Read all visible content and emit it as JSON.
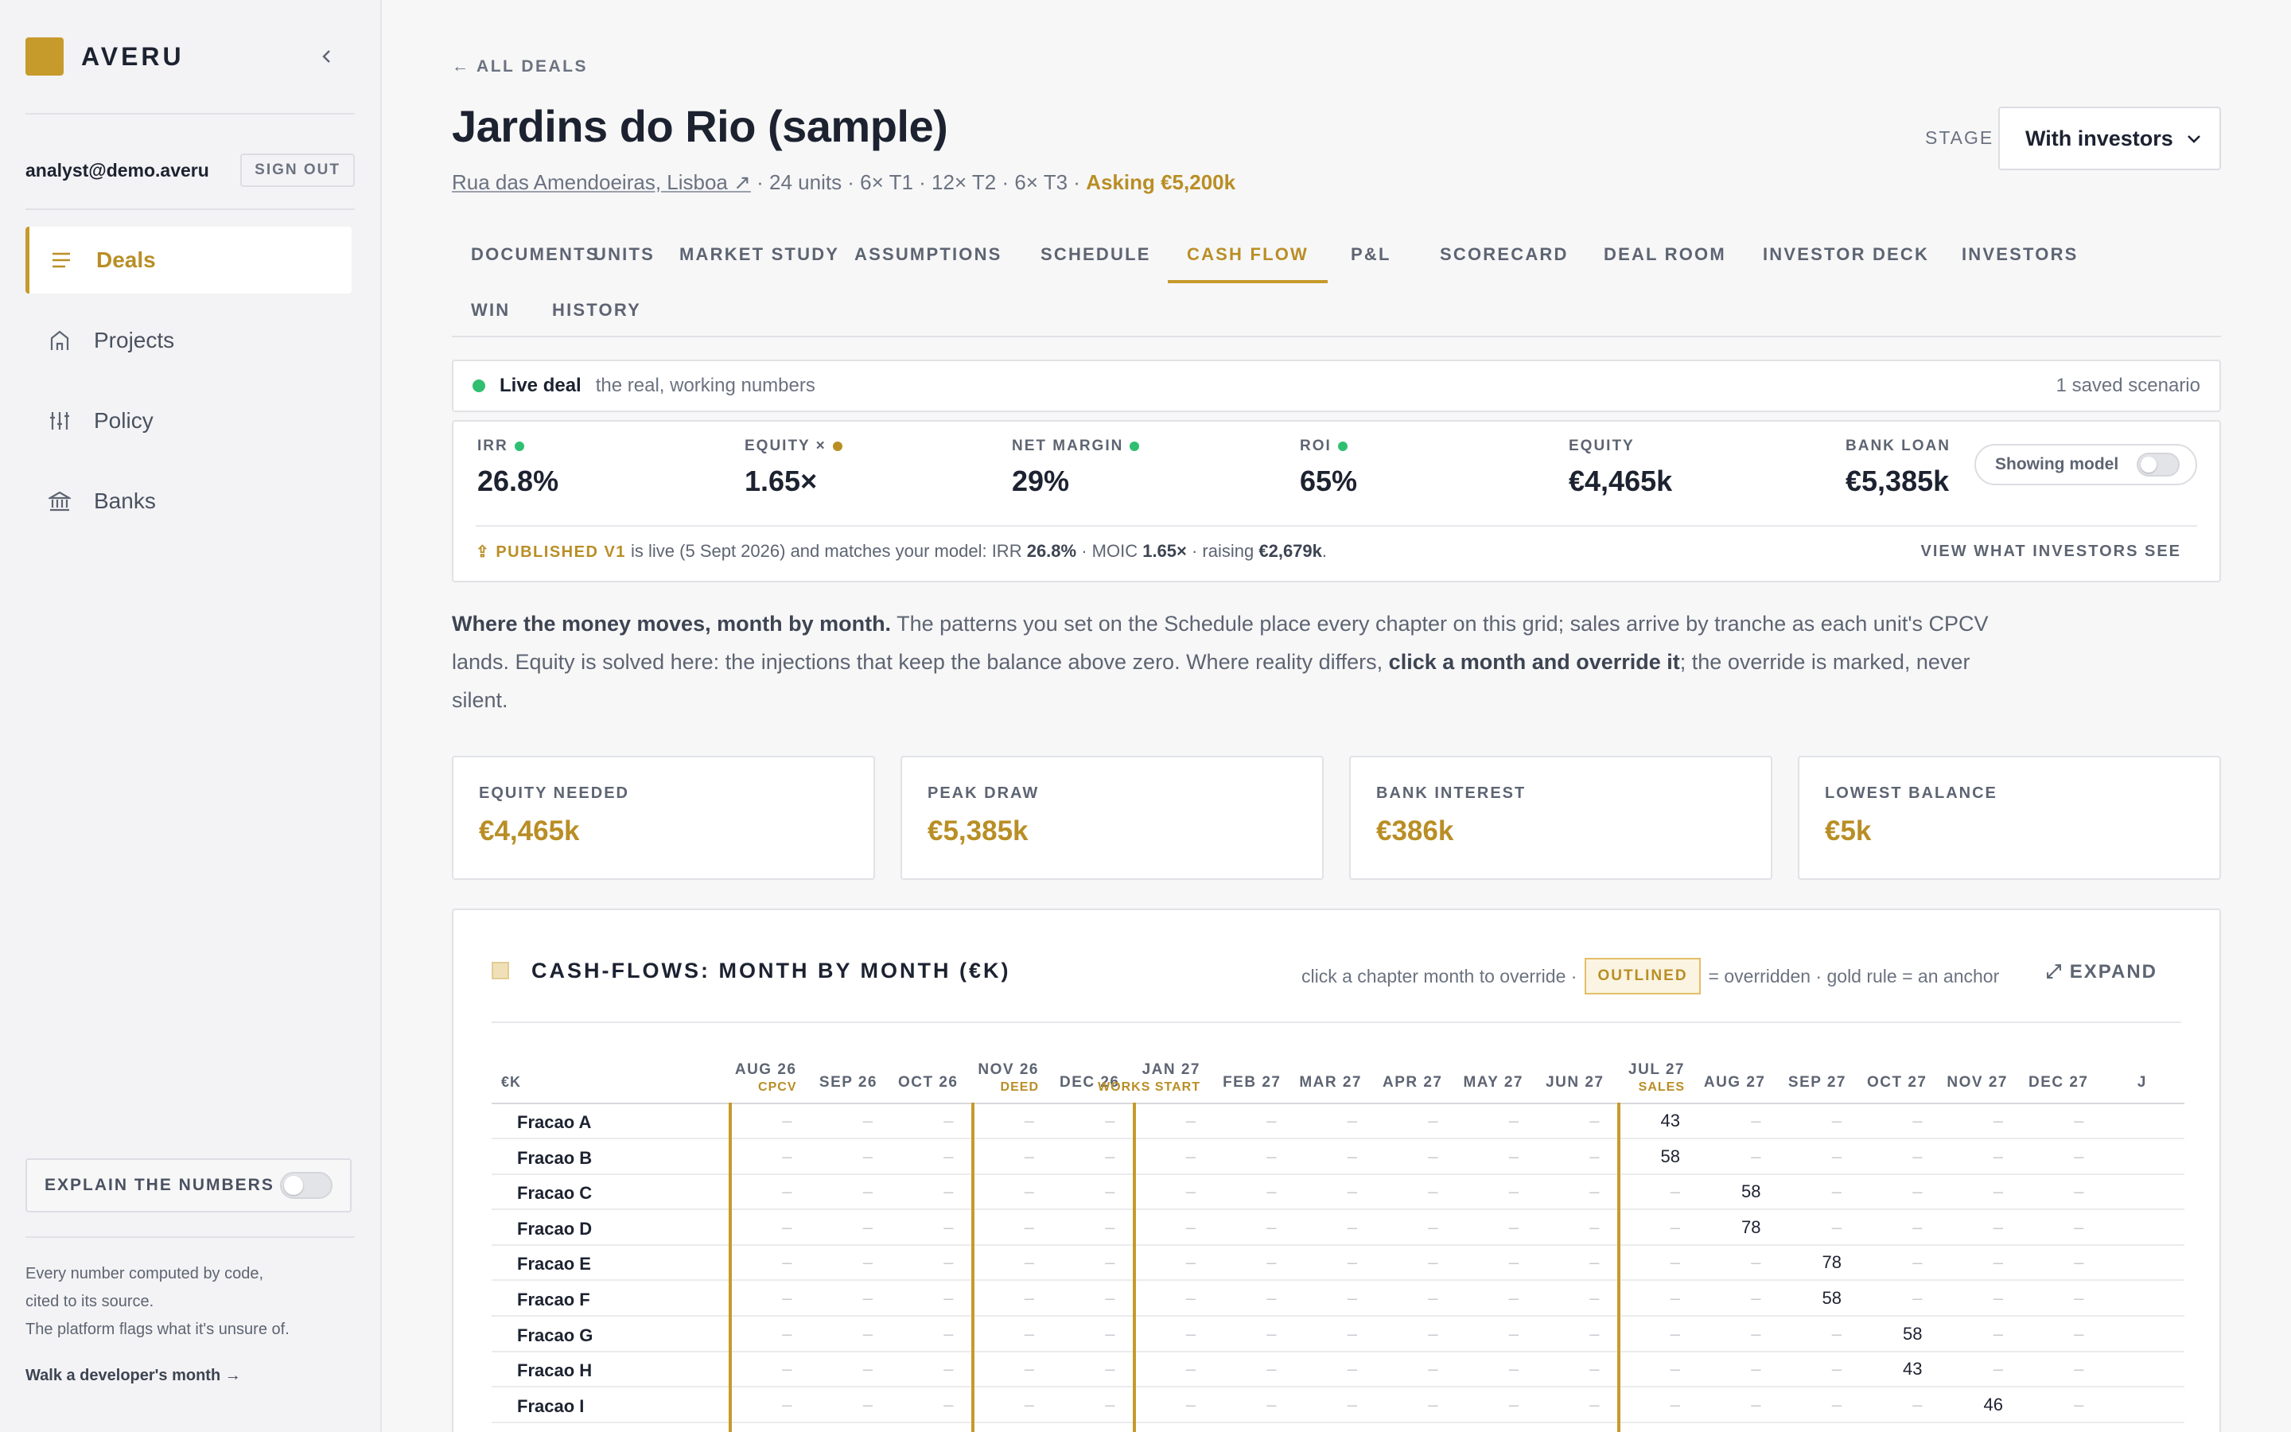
{
  "app": {
    "brand": "AVERU",
    "user_email": "analyst@demo.averu",
    "signout_label": "SIGN OUT",
    "nav": [
      {
        "label": "Deals",
        "icon": "list-icon",
        "active": true
      },
      {
        "label": "Projects",
        "icon": "home-icon",
        "active": false
      },
      {
        "label": "Policy",
        "icon": "sliders-icon",
        "active": false
      },
      {
        "label": "Banks",
        "icon": "bank-icon",
        "active": false
      }
    ],
    "explain_label": "EXPLAIN THE NUMBERS",
    "footer_lines": [
      "Every number computed by code,",
      "cited to its source.",
      "The platform flags what it's unsure of."
    ],
    "walk_link": "Walk a developer's month →"
  },
  "deal": {
    "back_label": "← ALL DEALS",
    "title": "Jardins do Rio (sample)",
    "address": "Rua das Amendoeiras, Lisboa ↗",
    "summary": " · 24 units · 6× T1 · 12× T2 · 6× T3 · ",
    "asking": "Asking €5,200k",
    "stage_label": "STAGE",
    "stage_value": "With investors"
  },
  "tabs": [
    "DOCUMENTS",
    "UNITS",
    "MARKET STUDY",
    "ASSUMPTIONS",
    "SCHEDULE",
    "CASH FLOW",
    "P&L",
    "SCORECARD",
    "DEAL ROOM",
    "INVESTOR DECK",
    "INVESTORS",
    "WIN",
    "HISTORY"
  ],
  "active_tab": "CASH FLOW",
  "live": {
    "title": "Live deal",
    "subtitle": "the real, working numbers",
    "scenarios": "1 saved scenario"
  },
  "metrics": [
    {
      "label": "IRR",
      "value": "26.8%",
      "status": "green"
    },
    {
      "label": "EQUITY ×",
      "value": "1.65×",
      "status": "amber"
    },
    {
      "label": "NET MARGIN",
      "value": "29%",
      "status": "green"
    },
    {
      "label": "ROI",
      "value": "65%",
      "status": "green"
    },
    {
      "label": "EQUITY",
      "value": "€4,465k",
      "status": ""
    },
    {
      "label": "BANK LOAN",
      "value": "€5,385k",
      "status": ""
    }
  ],
  "showing_model_label": "Showing model",
  "published": {
    "tag": "⇪ PUBLISHED V1",
    "text1": " is live (5 Sept 2026) and matches your model: IRR ",
    "irr": "26.8%",
    "text2": " · MOIC ",
    "moic": "1.65×",
    "text3": " · raising ",
    "raising": "€2,679k",
    "text4": ".",
    "view_label": "VIEW WHAT INVESTORS SEE"
  },
  "intro": {
    "lead": "Where the money moves, month by month.",
    "p1": " The patterns you set on the Schedule place every chapter on this grid; sales arrive by tranche as each unit's CPCV lands. Equity is solved here: the injections that keep the balance above zero. Where reality differs, ",
    "bold": "click a month and override it",
    "p2": "; the override is marked, never silent."
  },
  "kpis": [
    {
      "label": "EQUITY NEEDED",
      "value": "€4,465k"
    },
    {
      "label": "PEAK DRAW",
      "value": "€5,385k"
    },
    {
      "label": "BANK INTEREST",
      "value": "€386k"
    },
    {
      "label": "LOWEST BALANCE",
      "value": "€5k"
    }
  ],
  "cashflow": {
    "title": "CASH-FLOWS: MONTH BY MONTH (€K)",
    "hint_pre": "click a chapter month to override ·",
    "outlined": "OUTLINED",
    "hint_post": "= overridden · gold rule = an anchor",
    "expand": "⤢ EXPAND",
    "unit": "€K",
    "months": [
      {
        "label": "AUG 26",
        "sub": "CPCV"
      },
      {
        "label": "SEP 26",
        "sub": ""
      },
      {
        "label": "OCT 26",
        "sub": ""
      },
      {
        "label": "NOV 26",
        "sub": "DEED"
      },
      {
        "label": "DEC 26",
        "sub": ""
      },
      {
        "label": "JAN 27",
        "sub": "WORKS START"
      },
      {
        "label": "FEB 27",
        "sub": ""
      },
      {
        "label": "MAR 27",
        "sub": ""
      },
      {
        "label": "APR 27",
        "sub": ""
      },
      {
        "label": "MAY 27",
        "sub": ""
      },
      {
        "label": "JUN 27",
        "sub": ""
      },
      {
        "label": "JUL 27",
        "sub": "SALES"
      },
      {
        "label": "AUG 27",
        "sub": ""
      },
      {
        "label": "SEP 27",
        "sub": ""
      },
      {
        "label": "OCT 27",
        "sub": ""
      },
      {
        "label": "NOV 27",
        "sub": ""
      },
      {
        "label": "DEC 27",
        "sub": ""
      },
      {
        "label": "J",
        "sub": ""
      }
    ],
    "rows": [
      {
        "name": "Fracao A",
        "values": [
          "–",
          "–",
          "–",
          "–",
          "–",
          "–",
          "–",
          "–",
          "–",
          "–",
          "–",
          "43",
          "–",
          "–",
          "–",
          "–",
          "–"
        ]
      },
      {
        "name": "Fracao B",
        "values": [
          "–",
          "–",
          "–",
          "–",
          "–",
          "–",
          "–",
          "–",
          "–",
          "–",
          "–",
          "58",
          "–",
          "–",
          "–",
          "–",
          "–"
        ]
      },
      {
        "name": "Fracao C",
        "values": [
          "–",
          "–",
          "–",
          "–",
          "–",
          "–",
          "–",
          "–",
          "–",
          "–",
          "–",
          "–",
          "58",
          "–",
          "–",
          "–",
          "–"
        ]
      },
      {
        "name": "Fracao D",
        "values": [
          "–",
          "–",
          "–",
          "–",
          "–",
          "–",
          "–",
          "–",
          "–",
          "–",
          "–",
          "–",
          "78",
          "–",
          "–",
          "–",
          "–"
        ]
      },
      {
        "name": "Fracao E",
        "values": [
          "–",
          "–",
          "–",
          "–",
          "–",
          "–",
          "–",
          "–",
          "–",
          "–",
          "–",
          "–",
          "–",
          "78",
          "–",
          "–",
          "–"
        ]
      },
      {
        "name": "Fracao F",
        "values": [
          "–",
          "–",
          "–",
          "–",
          "–",
          "–",
          "–",
          "–",
          "–",
          "–",
          "–",
          "–",
          "–",
          "58",
          "–",
          "–",
          "–"
        ]
      },
      {
        "name": "Fracao G",
        "values": [
          "–",
          "–",
          "–",
          "–",
          "–",
          "–",
          "–",
          "–",
          "–",
          "–",
          "–",
          "–",
          "–",
          "–",
          "58",
          "–",
          "–"
        ]
      },
      {
        "name": "Fracao H",
        "values": [
          "–",
          "–",
          "–",
          "–",
          "–",
          "–",
          "–",
          "–",
          "–",
          "–",
          "–",
          "–",
          "–",
          "–",
          "43",
          "–",
          "–"
        ]
      },
      {
        "name": "Fracao I",
        "values": [
          "–",
          "–",
          "–",
          "–",
          "–",
          "–",
          "–",
          "–",
          "–",
          "–",
          "–",
          "–",
          "–",
          "–",
          "–",
          "46",
          "–"
        ]
      },
      {
        "name": "",
        "values": [
          "–",
          "–",
          "–",
          "–",
          "–",
          "–",
          "–",
          "–",
          "–",
          "–",
          "–",
          "–",
          "–",
          "–",
          "–",
          "–",
          "–"
        ]
      }
    ]
  }
}
